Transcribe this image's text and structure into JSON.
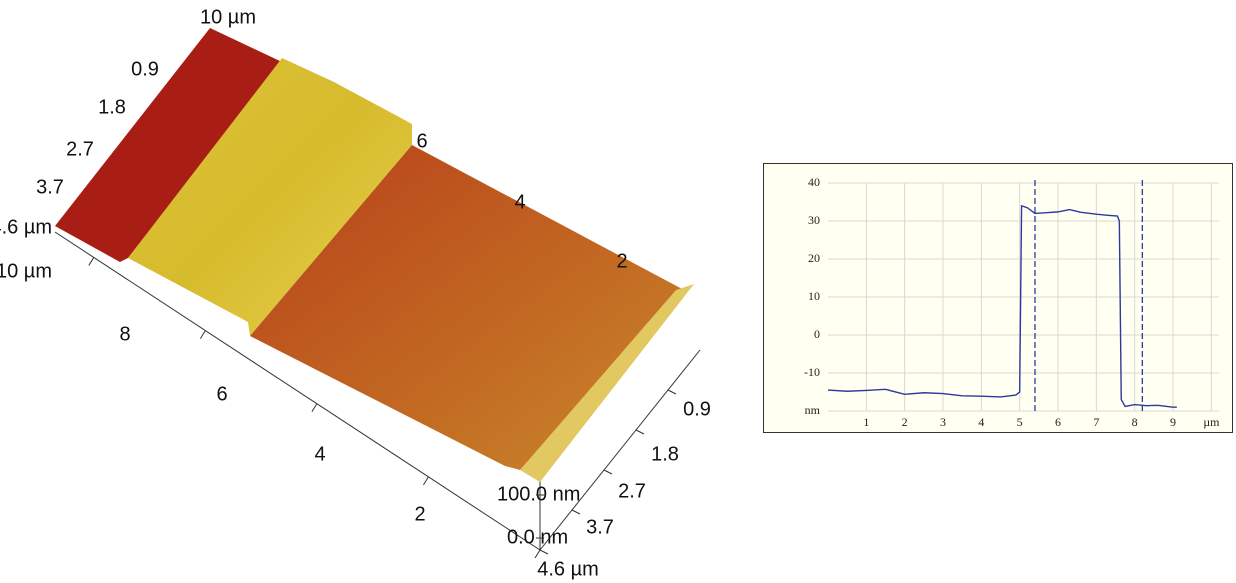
{
  "chart_data": [
    {
      "type": "surface",
      "xticks": [
        2,
        4,
        6,
        8,
        {
          "value": 10,
          "label": "10 µm"
        }
      ],
      "yticks": [
        0.9,
        1.8,
        2.7,
        3.7,
        {
          "value": 4.6,
          "label": "4.6 µm"
        }
      ],
      "zticks": [
        {
          "value": 0,
          "label": "0.0 nm"
        },
        {
          "value": 100,
          "label": "100.0 nm"
        }
      ]
    },
    {
      "type": "line",
      "x": [
        0,
        0.5,
        1,
        1.5,
        2,
        2.5,
        3,
        3.5,
        4,
        4.5,
        4.9,
        5.0,
        5.05,
        5.2,
        5.4,
        5.7,
        6,
        6.3,
        6.6,
        7,
        7.3,
        7.55,
        7.6,
        7.65,
        7.75,
        8,
        8.3,
        8.6,
        9,
        9.1
      ],
      "series": [
        {
          "color": "#2b3a9e",
          "values": [
            -14.5,
            -14.8,
            -14.6,
            -14.3,
            -15.6,
            -15.2,
            -15.4,
            -16,
            -16.1,
            -16.3,
            -15.8,
            -15,
            34,
            33.5,
            32,
            32.2,
            32.4,
            33,
            32.3,
            31.8,
            31.5,
            31.3,
            30,
            -17,
            -18.8,
            -18.3,
            -18.6,
            -18.5,
            -19,
            -19
          ]
        }
      ],
      "cursors": [
        5.4,
        8.2
      ],
      "xlim": [
        0,
        10.2
      ],
      "ylim": [
        -20,
        40
      ],
      "xticks": [
        1,
        2,
        3,
        4,
        5,
        6,
        7,
        8,
        9,
        {
          "value": 10,
          "label": "µm"
        }
      ],
      "yticks": [
        {
          "value": -20,
          "label": "nm"
        },
        -10,
        0,
        10,
        20,
        30,
        40
      ],
      "grid": true
    }
  ]
}
